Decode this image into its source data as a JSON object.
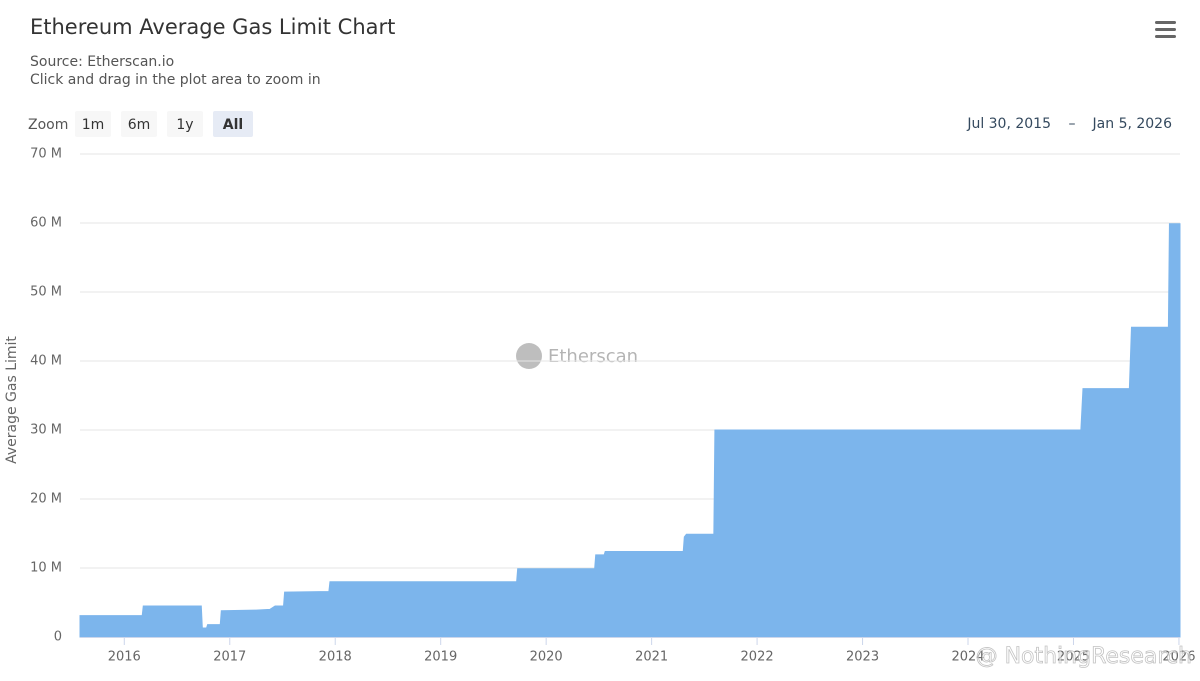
{
  "chart_data": {
    "type": "area",
    "title": "Ethereum Average Gas Limit Chart",
    "subtitle": [
      "Source: Etherscan.io",
      "Click and drag in the plot area to zoom in"
    ],
    "zoom_label": "Zoom",
    "zoom_buttons": [
      "1m",
      "6m",
      "1y",
      "All"
    ],
    "range": [
      "Jul 30, 2015",
      "Jan 5, 2026"
    ],
    "range_separator": "–",
    "y_label": "Average Gas Limit",
    "watermarks": [
      "Etherscan",
      "@ NothingResearch"
    ],
    "color": "#7cb5ec",
    "grid": true,
    "x": [
      2015.58,
      2016.17,
      2016.18,
      2016.73,
      2016.74,
      2016.78,
      2016.79,
      2016.91,
      2016.92,
      2017.25,
      2017.38,
      2017.43,
      2017.51,
      2017.52,
      2017.94,
      2017.95,
      2019.72,
      2019.73,
      2020.46,
      2020.47,
      2020.55,
      2020.56,
      2021.3,
      2021.31,
      2021.33,
      2021.59,
      2021.6,
      2025.07,
      2025.09,
      2025.53,
      2025.55,
      2025.9,
      2025.91,
      2026.01
    ],
    "values": [
      3100000,
      3100000,
      4500000,
      4500000,
      1300000,
      1300000,
      1800000,
      1800000,
      3800000,
      3900000,
      4000000,
      4500000,
      4500000,
      6500000,
      6600000,
      8000000,
      8000000,
      9900000,
      9900000,
      11900000,
      11900000,
      12400000,
      12400000,
      14500000,
      14900000,
      14900000,
      30000000,
      30000000,
      36000000,
      36000000,
      44900000,
      44900000,
      59900000,
      59900000
    ],
    "xlim": [
      2015.58,
      2026.01
    ],
    "xticks": [
      2016,
      2017,
      2018,
      2019,
      2020,
      2021,
      2022,
      2023,
      2024,
      2025,
      2026
    ],
    "ylim": [
      0,
      70000000
    ],
    "yticks": [
      0,
      {
        "value": 10000000,
        "label": "10 M"
      },
      {
        "value": 20000000,
        "label": "20 M"
      },
      {
        "value": 30000000,
        "label": "30 M"
      },
      {
        "value": 40000000,
        "label": "40 M"
      },
      {
        "value": 50000000,
        "label": "50 M"
      },
      {
        "value": 60000000,
        "label": "60 M"
      },
      {
        "value": 70000000,
        "label": "70 M"
      }
    ]
  }
}
